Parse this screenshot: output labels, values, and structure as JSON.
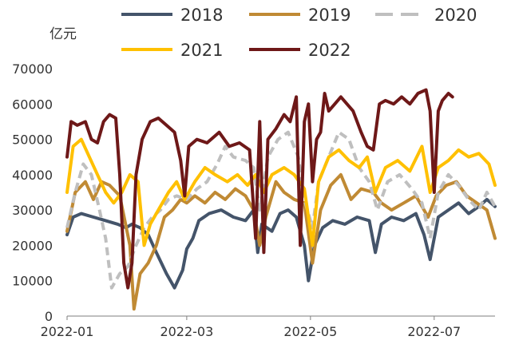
{
  "chart_data": {
    "type": "line",
    "title": "",
    "xlabel": "",
    "ylabel": "亿元",
    "ylim": [
      0,
      70000
    ],
    "yticks": [
      0,
      10000,
      20000,
      30000,
      40000,
      50000,
      60000,
      70000
    ],
    "yticklabels": [
      "0",
      "10000",
      "20000",
      "30000",
      "40000",
      "50000",
      "60000",
      "70000"
    ],
    "xlim": [
      "2022-01-01",
      "2022-07-31"
    ],
    "xticks": [
      "2022-01-01",
      "2022-03-01",
      "2022-05-01",
      "2022-07-01"
    ],
    "xticklabels": [
      "2022-01",
      "2022-03",
      "2022-05",
      "2022-07"
    ],
    "grid": false,
    "legend_position": "top",
    "series": [
      {
        "name": "2018",
        "color": "#44546a",
        "dash": false,
        "points": [
          [
            "2022-01-01",
            23000
          ],
          [
            "2022-01-04",
            28000
          ],
          [
            "2022-01-08",
            29000
          ],
          [
            "2022-01-14",
            28000
          ],
          [
            "2022-01-20",
            27000
          ],
          [
            "2022-01-26",
            26000
          ],
          [
            "2022-01-30",
            25000
          ],
          [
            "2022-02-02",
            26000
          ],
          [
            "2022-02-06",
            25000
          ],
          [
            "2022-02-10",
            23000
          ],
          [
            "2022-02-14",
            18000
          ],
          [
            "2022-02-19",
            12000
          ],
          [
            "2022-02-23",
            8000
          ],
          [
            "2022-02-27",
            13000
          ],
          [
            "2022-03-01",
            19000
          ],
          [
            "2022-03-04",
            22000
          ],
          [
            "2022-03-07",
            27000
          ],
          [
            "2022-03-12",
            29000
          ],
          [
            "2022-03-18",
            30000
          ],
          [
            "2022-03-24",
            28000
          ],
          [
            "2022-03-30",
            27000
          ],
          [
            "2022-04-03",
            30000
          ],
          [
            "2022-04-05",
            18000
          ],
          [
            "2022-04-07",
            26000
          ],
          [
            "2022-04-12",
            24000
          ],
          [
            "2022-04-16",
            29000
          ],
          [
            "2022-04-20",
            30000
          ],
          [
            "2022-04-24",
            28000
          ],
          [
            "2022-04-28",
            20000
          ],
          [
            "2022-04-30",
            10000
          ],
          [
            "2022-05-03",
            20000
          ],
          [
            "2022-05-07",
            25000
          ],
          [
            "2022-05-12",
            27000
          ],
          [
            "2022-05-18",
            26000
          ],
          [
            "2022-05-24",
            28000
          ],
          [
            "2022-05-30",
            27000
          ],
          [
            "2022-06-02",
            18000
          ],
          [
            "2022-06-05",
            26000
          ],
          [
            "2022-06-10",
            28000
          ],
          [
            "2022-06-16",
            27000
          ],
          [
            "2022-06-22",
            29000
          ],
          [
            "2022-06-26",
            23000
          ],
          [
            "2022-06-29",
            16000
          ],
          [
            "2022-07-03",
            28000
          ],
          [
            "2022-07-08",
            30000
          ],
          [
            "2022-07-13",
            32000
          ],
          [
            "2022-07-18",
            29000
          ],
          [
            "2022-07-23",
            31000
          ],
          [
            "2022-07-27",
            33000
          ],
          [
            "2022-07-31",
            31000
          ]
        ]
      },
      {
        "name": "2019",
        "color": "#c08a34",
        "dash": false,
        "points": [
          [
            "2022-01-01",
            24000
          ],
          [
            "2022-01-05",
            35000
          ],
          [
            "2022-01-10",
            38000
          ],
          [
            "2022-01-14",
            33000
          ],
          [
            "2022-01-18",
            38000
          ],
          [
            "2022-01-22",
            37000
          ],
          [
            "2022-01-27",
            34000
          ],
          [
            "2022-02-01",
            20000
          ],
          [
            "2022-02-03",
            2000
          ],
          [
            "2022-02-06",
            12000
          ],
          [
            "2022-02-10",
            15000
          ],
          [
            "2022-02-14",
            20000
          ],
          [
            "2022-02-18",
            28000
          ],
          [
            "2022-02-22",
            30000
          ],
          [
            "2022-02-26",
            33000
          ],
          [
            "2022-03-01",
            32000
          ],
          [
            "2022-03-05",
            34000
          ],
          [
            "2022-03-10",
            32000
          ],
          [
            "2022-03-15",
            35000
          ],
          [
            "2022-03-20",
            33000
          ],
          [
            "2022-03-25",
            36000
          ],
          [
            "2022-03-30",
            34000
          ],
          [
            "2022-04-03",
            30000
          ],
          [
            "2022-04-06",
            20000
          ],
          [
            "2022-04-09",
            28000
          ],
          [
            "2022-04-14",
            38000
          ],
          [
            "2022-04-18",
            35000
          ],
          [
            "2022-04-23",
            33000
          ],
          [
            "2022-04-28",
            32000
          ],
          [
            "2022-05-02",
            15000
          ],
          [
            "2022-05-06",
            30000
          ],
          [
            "2022-05-11",
            37000
          ],
          [
            "2022-05-16",
            40000
          ],
          [
            "2022-05-21",
            33000
          ],
          [
            "2022-05-26",
            36000
          ],
          [
            "2022-06-01",
            35000
          ],
          [
            "2022-06-05",
            32000
          ],
          [
            "2022-06-10",
            30000
          ],
          [
            "2022-06-16",
            32000
          ],
          [
            "2022-06-22",
            34000
          ],
          [
            "2022-06-28",
            28000
          ],
          [
            "2022-07-02",
            34000
          ],
          [
            "2022-07-07",
            37000
          ],
          [
            "2022-07-12",
            38000
          ],
          [
            "2022-07-17",
            34000
          ],
          [
            "2022-07-22",
            32000
          ],
          [
            "2022-07-27",
            30000
          ],
          [
            "2022-07-31",
            22000
          ]
        ]
      },
      {
        "name": "2020",
        "color": "#bfbfbf",
        "dash": true,
        "points": [
          [
            "2022-01-01",
            25000
          ],
          [
            "2022-01-05",
            35000
          ],
          [
            "2022-01-09",
            43000
          ],
          [
            "2022-01-13",
            40000
          ],
          [
            "2022-01-17",
            30000
          ],
          [
            "2022-01-20",
            22000
          ],
          [
            "2022-01-23",
            8000
          ],
          [
            "2022-01-27",
            12000
          ],
          [
            "2022-01-31",
            14000
          ],
          [
            "2022-02-04",
            20000
          ],
          [
            "2022-02-08",
            25000
          ],
          [
            "2022-02-12",
            28000
          ],
          [
            "2022-02-16",
            30000
          ],
          [
            "2022-02-20",
            33000
          ],
          [
            "2022-02-24",
            34000
          ],
          [
            "2022-03-01",
            33000
          ],
          [
            "2022-03-06",
            36000
          ],
          [
            "2022-03-11",
            38000
          ],
          [
            "2022-03-16",
            43000
          ],
          [
            "2022-03-20",
            48000
          ],
          [
            "2022-03-24",
            45000
          ],
          [
            "2022-03-30",
            44000
          ],
          [
            "2022-04-03",
            42000
          ],
          [
            "2022-04-06",
            30000
          ],
          [
            "2022-04-10",
            45000
          ],
          [
            "2022-04-15",
            50000
          ],
          [
            "2022-04-20",
            52000
          ],
          [
            "2022-04-25",
            45000
          ],
          [
            "2022-04-28",
            33000
          ],
          [
            "2022-05-02",
            25000
          ],
          [
            "2022-05-05",
            38000
          ],
          [
            "2022-05-10",
            45000
          ],
          [
            "2022-05-15",
            52000
          ],
          [
            "2022-05-20",
            50000
          ],
          [
            "2022-05-25",
            42000
          ],
          [
            "2022-05-30",
            38000
          ],
          [
            "2022-06-03",
            30000
          ],
          [
            "2022-06-08",
            38000
          ],
          [
            "2022-06-14",
            40000
          ],
          [
            "2022-06-20",
            36000
          ],
          [
            "2022-06-25",
            32000
          ],
          [
            "2022-06-29",
            22000
          ],
          [
            "2022-07-03",
            35000
          ],
          [
            "2022-07-08",
            40000
          ],
          [
            "2022-07-13",
            37000
          ],
          [
            "2022-07-18",
            33000
          ],
          [
            "2022-07-23",
            30000
          ],
          [
            "2022-07-27",
            35000
          ],
          [
            "2022-07-31",
            31000
          ]
        ]
      },
      {
        "name": "2021",
        "color": "#ffc000",
        "dash": false,
        "points": [
          [
            "2022-01-01",
            35000
          ],
          [
            "2022-01-04",
            48000
          ],
          [
            "2022-01-08",
            50000
          ],
          [
            "2022-01-12",
            45000
          ],
          [
            "2022-01-16",
            40000
          ],
          [
            "2022-01-20",
            35000
          ],
          [
            "2022-01-24",
            32000
          ],
          [
            "2022-01-28",
            35000
          ],
          [
            "2022-02-01",
            40000
          ],
          [
            "2022-02-05",
            38000
          ],
          [
            "2022-02-08",
            20000
          ],
          [
            "2022-02-11",
            26000
          ],
          [
            "2022-02-15",
            30000
          ],
          [
            "2022-02-20",
            35000
          ],
          [
            "2022-02-24",
            38000
          ],
          [
            "2022-02-28",
            33000
          ],
          [
            "2022-03-05",
            38000
          ],
          [
            "2022-03-10",
            42000
          ],
          [
            "2022-03-15",
            40000
          ],
          [
            "2022-03-21",
            38000
          ],
          [
            "2022-03-26",
            40000
          ],
          [
            "2022-03-31",
            37000
          ],
          [
            "2022-04-04",
            40000
          ],
          [
            "2022-04-08",
            35000
          ],
          [
            "2022-04-12",
            40000
          ],
          [
            "2022-04-18",
            42000
          ],
          [
            "2022-04-23",
            40000
          ],
          [
            "2022-04-28",
            36000
          ],
          [
            "2022-05-02",
            20000
          ],
          [
            "2022-05-05",
            38000
          ],
          [
            "2022-05-10",
            45000
          ],
          [
            "2022-05-15",
            47000
          ],
          [
            "2022-05-20",
            44000
          ],
          [
            "2022-05-25",
            42000
          ],
          [
            "2022-05-29",
            45000
          ],
          [
            "2022-06-02",
            35000
          ],
          [
            "2022-06-07",
            42000
          ],
          [
            "2022-06-13",
            44000
          ],
          [
            "2022-06-19",
            41000
          ],
          [
            "2022-06-25",
            48000
          ],
          [
            "2022-06-29",
            35000
          ],
          [
            "2022-07-03",
            42000
          ],
          [
            "2022-07-08",
            44000
          ],
          [
            "2022-07-13",
            47000
          ],
          [
            "2022-07-18",
            45000
          ],
          [
            "2022-07-23",
            46000
          ],
          [
            "2022-07-28",
            43000
          ],
          [
            "2022-07-31",
            37000
          ]
        ]
      },
      {
        "name": "2022",
        "color": "#6e1818",
        "dash": false,
        "points": [
          [
            "2022-01-01",
            45000
          ],
          [
            "2022-01-03",
            55000
          ],
          [
            "2022-01-06",
            54000
          ],
          [
            "2022-01-10",
            55000
          ],
          [
            "2022-01-13",
            50000
          ],
          [
            "2022-01-16",
            49000
          ],
          [
            "2022-01-19",
            55000
          ],
          [
            "2022-01-22",
            57000
          ],
          [
            "2022-01-25",
            56000
          ],
          [
            "2022-01-27",
            40000
          ],
          [
            "2022-01-29",
            15000
          ],
          [
            "2022-01-31",
            8000
          ],
          [
            "2022-02-02",
            15000
          ],
          [
            "2022-02-04",
            40000
          ],
          [
            "2022-02-07",
            50000
          ],
          [
            "2022-02-11",
            55000
          ],
          [
            "2022-02-15",
            56000
          ],
          [
            "2022-02-19",
            54000
          ],
          [
            "2022-02-23",
            52000
          ],
          [
            "2022-02-26",
            44000
          ],
          [
            "2022-02-28",
            34000
          ],
          [
            "2022-03-02",
            48000
          ],
          [
            "2022-03-06",
            50000
          ],
          [
            "2022-03-11",
            49000
          ],
          [
            "2022-03-17",
            52000
          ],
          [
            "2022-03-22",
            48000
          ],
          [
            "2022-03-27",
            49000
          ],
          [
            "2022-04-01",
            47000
          ],
          [
            "2022-04-04",
            22000
          ],
          [
            "2022-04-06",
            55000
          ],
          [
            "2022-04-08",
            18000
          ],
          [
            "2022-04-10",
            50000
          ],
          [
            "2022-04-14",
            53000
          ],
          [
            "2022-04-18",
            57000
          ],
          [
            "2022-04-21",
            55000
          ],
          [
            "2022-04-24",
            62000
          ],
          [
            "2022-04-26",
            20000
          ],
          [
            "2022-04-28",
            55000
          ],
          [
            "2022-04-30",
            60000
          ],
          [
            "2022-05-02",
            38000
          ],
          [
            "2022-05-04",
            50000
          ],
          [
            "2022-05-06",
            52000
          ],
          [
            "2022-05-08",
            63000
          ],
          [
            "2022-05-10",
            58000
          ],
          [
            "2022-05-13",
            60000
          ],
          [
            "2022-05-16",
            62000
          ],
          [
            "2022-05-19",
            60000
          ],
          [
            "2022-05-22",
            58000
          ],
          [
            "2022-05-26",
            52000
          ],
          [
            "2022-05-29",
            48000
          ],
          [
            "2022-06-01",
            47000
          ],
          [
            "2022-06-04",
            60000
          ],
          [
            "2022-06-07",
            61000
          ],
          [
            "2022-06-11",
            60000
          ],
          [
            "2022-06-15",
            62000
          ],
          [
            "2022-06-19",
            60000
          ],
          [
            "2022-06-23",
            63000
          ],
          [
            "2022-06-27",
            64000
          ],
          [
            "2022-06-29",
            58000
          ],
          [
            "2022-07-01",
            35000
          ],
          [
            "2022-07-03",
            58000
          ],
          [
            "2022-07-05",
            61000
          ],
          [
            "2022-07-08",
            63000
          ],
          [
            "2022-07-10",
            62000
          ]
        ]
      }
    ]
  }
}
